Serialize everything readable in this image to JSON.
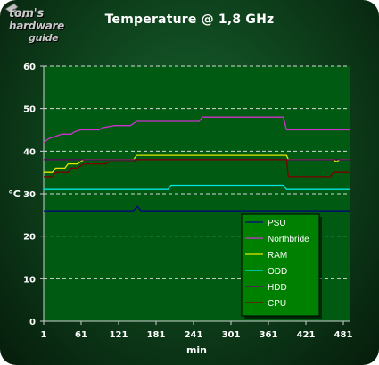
{
  "brand": {
    "line1": "tom's",
    "line2": "hardware",
    "line3": "guide"
  },
  "chart_data": {
    "type": "line",
    "title": "Temperature @ 1,8 GHz",
    "xlabel": "min",
    "ylabel": "°C",
    "xlim": [
      1,
      491
    ],
    "ylim": [
      0,
      60
    ],
    "x_ticks": [
      "1",
      "61",
      "121",
      "181",
      "241",
      "301",
      "361",
      "421",
      "481"
    ],
    "y_ticks": [
      "0",
      "10",
      "20",
      "30",
      "40",
      "50",
      "60"
    ],
    "grid": true,
    "legend_position": "bottom-right",
    "series": [
      {
        "name": "PSU",
        "color": "#000080",
        "points": [
          [
            1,
            26
          ],
          [
            145,
            26
          ],
          [
            148,
            26.5
          ],
          [
            151,
            27
          ],
          [
            154,
            26.5
          ],
          [
            157,
            26
          ],
          [
            491,
            26
          ]
        ]
      },
      {
        "name": "Northbride",
        "color": "#cc33cc",
        "points": [
          [
            1,
            42
          ],
          [
            5,
            42.5
          ],
          [
            10,
            43
          ],
          [
            20,
            43.5
          ],
          [
            30,
            44
          ],
          [
            45,
            44
          ],
          [
            50,
            44.5
          ],
          [
            60,
            45
          ],
          [
            90,
            45
          ],
          [
            95,
            45.5
          ],
          [
            115,
            46
          ],
          [
            140,
            46
          ],
          [
            145,
            46.5
          ],
          [
            150,
            47
          ],
          [
            200,
            47
          ],
          [
            210,
            47
          ],
          [
            250,
            47
          ],
          [
            255,
            48
          ],
          [
            385,
            48
          ],
          [
            390,
            45
          ],
          [
            491,
            45
          ]
        ]
      },
      {
        "name": "RAM",
        "color": "#e6e600",
        "points": [
          [
            1,
            35
          ],
          [
            15,
            35
          ],
          [
            20,
            36
          ],
          [
            35,
            36
          ],
          [
            40,
            37
          ],
          [
            55,
            37
          ],
          [
            60,
            37.5
          ],
          [
            65,
            38
          ],
          [
            145,
            38
          ],
          [
            150,
            39
          ],
          [
            390,
            39
          ],
          [
            393,
            38
          ],
          [
            465,
            38
          ],
          [
            470,
            37.5
          ],
          [
            475,
            38
          ],
          [
            491,
            38
          ]
        ]
      },
      {
        "name": "ODD",
        "color": "#00e6e6",
        "points": [
          [
            1,
            31
          ],
          [
            200,
            31
          ],
          [
            205,
            32
          ],
          [
            385,
            32
          ],
          [
            390,
            31
          ],
          [
            491,
            31
          ]
        ]
      },
      {
        "name": "HDD",
        "color": "#660066",
        "points": [
          [
            1,
            38
          ],
          [
            491,
            38
          ]
        ]
      },
      {
        "name": "CPU",
        "color": "#7a0000",
        "points": [
          [
            1,
            34
          ],
          [
            15,
            34
          ],
          [
            20,
            35
          ],
          [
            40,
            35
          ],
          [
            45,
            36
          ],
          [
            55,
            36
          ],
          [
            60,
            36.5
          ],
          [
            65,
            37
          ],
          [
            100,
            37
          ],
          [
            105,
            37.5
          ],
          [
            145,
            37.5
          ],
          [
            150,
            38
          ],
          [
            390,
            38
          ],
          [
            393,
            34
          ],
          [
            460,
            34
          ],
          [
            465,
            35
          ],
          [
            491,
            35
          ]
        ]
      }
    ]
  }
}
